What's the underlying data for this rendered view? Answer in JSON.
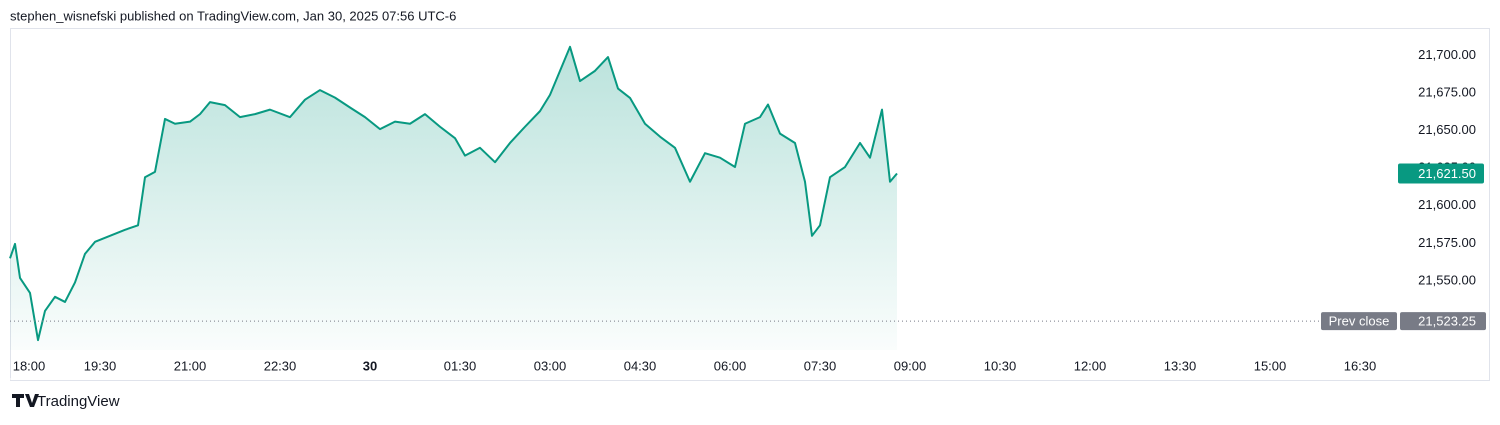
{
  "header": "stephen_wisnefski published on TradingView.com, Jan 30, 2025 07:56 UTC-6",
  "footer": "TradingView",
  "chart_data": {
    "type": "area",
    "color": "#089981",
    "x": [
      0,
      5,
      10,
      20,
      28,
      35,
      45,
      55,
      65,
      75,
      85,
      100,
      115,
      128,
      135,
      145,
      155,
      165,
      180,
      190,
      200,
      215,
      230,
      245,
      260,
      280,
      295,
      310,
      325,
      340,
      355,
      370,
      385,
      400,
      415,
      430,
      445,
      455,
      470,
      485,
      500,
      515,
      530,
      540,
      550,
      560,
      570,
      585,
      598,
      608,
      620,
      635,
      650,
      665,
      680,
      695,
      710,
      725,
      735,
      750,
      758,
      770,
      785,
      795,
      802,
      810,
      820,
      835,
      850,
      860,
      872,
      880,
      887
    ],
    "values": [
      21565,
      21574.6,
      21552,
      21542,
      21510.6,
      21530,
      21539.4,
      21536,
      21549,
      21568,
      21576,
      21580,
      21584,
      21587,
      21619,
      21622.6,
      21657.8,
      21654.6,
      21656,
      21661,
      21669,
      21667,
      21659,
      21661,
      21664,
      21659,
      21670.6,
      21677,
      21672,
      21665.4,
      21659,
      21651,
      21656,
      21654.6,
      21661,
      21652.6,
      21645,
      21633.4,
      21638.6,
      21629,
      21641.8,
      21652.6,
      21663,
      21673.8,
      21689.8,
      21705.8,
      21683,
      21689.8,
      21699,
      21678,
      21671.8,
      21654.6,
      21646,
      21638.6,
      21616,
      21635,
      21632,
      21625.8,
      21654.6,
      21659,
      21667.4,
      21648,
      21641.8,
      21616,
      21580,
      21587,
      21619,
      21625.8,
      21641.8,
      21632,
      21664,
      21616,
      21621.5
    ],
    "xlim": [
      0,
      1385
    ],
    "ylim": [
      21504,
      21717
    ],
    "xticks": [
      {
        "value": 0,
        "label": "18:00"
      },
      {
        "value": 90,
        "label": "19:30"
      },
      {
        "value": 180,
        "label": "21:00"
      },
      {
        "value": 270,
        "label": "22:30"
      },
      {
        "value": 360,
        "label": "30",
        "bold": true
      },
      {
        "value": 450,
        "label": "01:30"
      },
      {
        "value": 540,
        "label": "03:00"
      },
      {
        "value": 630,
        "label": "04:30"
      },
      {
        "value": 720,
        "label": "06:00"
      },
      {
        "value": 810,
        "label": "07:30"
      },
      {
        "value": 900,
        "label": "09:00"
      },
      {
        "value": 990,
        "label": "10:30"
      },
      {
        "value": 1080,
        "label": "12:00"
      },
      {
        "value": 1170,
        "label": "13:30"
      },
      {
        "value": 1260,
        "label": "15:00"
      },
      {
        "value": 1350,
        "label": "16:30"
      }
    ],
    "yticks": [
      {
        "value": 21550,
        "label": "21,550.00"
      },
      {
        "value": 21575,
        "label": "21,575.00"
      },
      {
        "value": 21600,
        "label": "21,600.00"
      },
      {
        "value": 21625,
        "label": "21,625.00"
      },
      {
        "value": 21650,
        "label": "21,650.00"
      },
      {
        "value": 21675,
        "label": "21,675.00"
      },
      {
        "value": 21700,
        "label": "21,700.00"
      }
    ],
    "last_price": {
      "value": 21621.5,
      "label": "21,621.50"
    },
    "prev_close": {
      "name": "Prev close",
      "value": 21523.25,
      "label": "21,523.25"
    }
  }
}
